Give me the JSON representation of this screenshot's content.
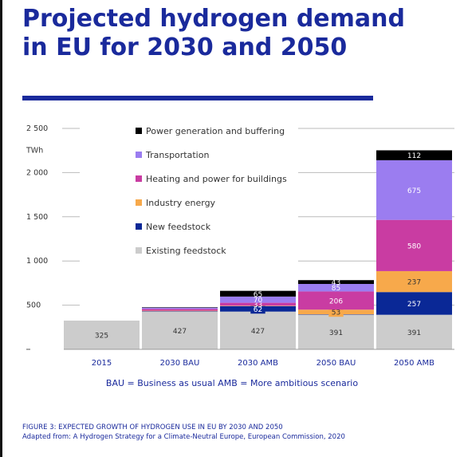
{
  "title_line1": "Projected hydrogen demand",
  "title_line2_bold": "in EU",
  "title_line2_rest": " for 2030 and 2050",
  "note": "BAU = Business as usual   AMB = More ambitious scenario",
  "caption_line1": "FIGURE 3: EXPECTED GROWTH OF HYDROGEN USE IN EU BY 2030 AND 2050",
  "caption_line2": "Adapted from: A Hydrogen Strategy for a Climate-Neutral Europe, European Commission, 2020",
  "chart_data": {
    "type": "bar",
    "stacked": true,
    "categories": [
      "2015",
      "2030 BAU",
      "2030 AMB",
      "2050 BAU",
      "2050 AMB"
    ],
    "ylabel": "TWh",
    "ylim": [
      0,
      2500
    ],
    "yticks": [
      2500,
      2000,
      1500,
      1000,
      500
    ],
    "ytick_labels": [
      "2 500",
      "2 000",
      "1 500",
      "1 000",
      "500"
    ],
    "legend_position": "top-left",
    "series": [
      {
        "name": "Existing feedstock",
        "color": "#cccccc",
        "label_color": "#333333",
        "values": [
          325,
          427,
          427,
          391,
          391
        ],
        "labels": [
          "325",
          "427",
          "427",
          "391",
          "391"
        ]
      },
      {
        "name": "New feedstock",
        "color": "#0a2896",
        "label_color": "#ffffff",
        "values": [
          0,
          5,
          62,
          5,
          257
        ],
        "labels": [
          "",
          "",
          "62",
          "",
          "257"
        ]
      },
      {
        "name": "Industry energy",
        "color": "#f7a94b",
        "label_color": "#333333",
        "values": [
          0,
          5,
          5,
          53,
          237
        ],
        "labels": [
          "",
          "",
          "",
          "53",
          "237"
        ]
      },
      {
        "name": "Heating and power for buildings",
        "color": "#c93ca2",
        "label_color": "#ffffff",
        "values": [
          0,
          20,
          33,
          206,
          580
        ],
        "labels": [
          "",
          "",
          "33",
          "206",
          "580"
        ]
      },
      {
        "name": "Transportation",
        "color": "#9b7df0",
        "label_color": "#ffffff",
        "values": [
          0,
          15,
          70,
          85,
          675
        ],
        "labels": [
          "",
          "",
          "70",
          "85",
          "675"
        ]
      },
      {
        "name": "Power generation and buffering",
        "color": "#000000",
        "label_color": "#ffffff",
        "values": [
          0,
          5,
          65,
          43,
          112
        ],
        "labels": [
          "",
          "",
          "65",
          "43",
          "112"
        ]
      }
    ]
  }
}
